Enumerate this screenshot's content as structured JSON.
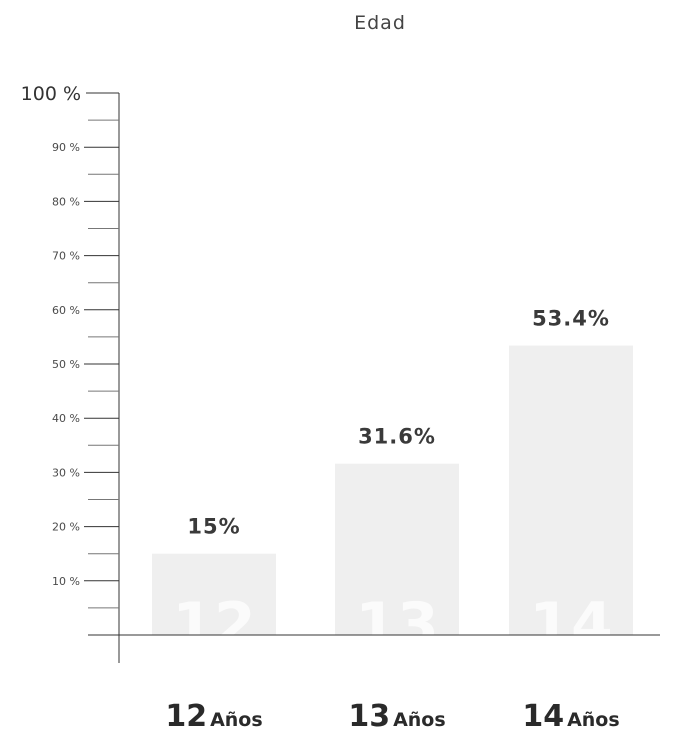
{
  "chart_data": {
    "type": "bar",
    "title": "Edad",
    "categories": [
      "12",
      "13",
      "14"
    ],
    "category_suffix": "Años",
    "values": [
      15,
      31.6,
      53.4
    ],
    "data_labels": [
      "15%",
      "31.6%",
      "53.4%"
    ],
    "ylim": [
      0,
      100
    ],
    "yticks": [
      {
        "value": 10,
        "label": "10 %"
      },
      {
        "value": 20,
        "label": "20 %"
      },
      {
        "value": 30,
        "label": "30 %"
      },
      {
        "value": 40,
        "label": "40 %"
      },
      {
        "value": 50,
        "label": "50 %"
      },
      {
        "value": 60,
        "label": "60 %"
      },
      {
        "value": 70,
        "label": "70 %"
      },
      {
        "value": 80,
        "label": "80 %"
      },
      {
        "value": 90,
        "label": "90 %"
      },
      {
        "value": 100,
        "label": "100 %"
      }
    ],
    "minor_tick_step": 5,
    "xlabel": "",
    "ylabel": "",
    "grid": false,
    "legend": "none",
    "colors": {
      "bar": "#efefef",
      "axis": "#333333",
      "text": "#333333"
    }
  }
}
